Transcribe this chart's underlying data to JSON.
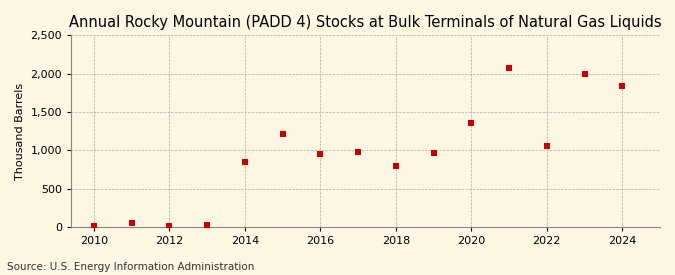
{
  "title": "Annual Rocky Mountain (PADD 4) Stocks at Bulk Terminals of Natural Gas Liquids",
  "ylabel": "Thousand Barrels",
  "source": "Source: U.S. Energy Information Administration",
  "x": [
    2010,
    2011,
    2012,
    2013,
    2014,
    2015,
    2016,
    2017,
    2018,
    2019,
    2020,
    2021,
    2022,
    2023,
    2024
  ],
  "y": [
    10,
    55,
    10,
    35,
    855,
    1215,
    950,
    980,
    800,
    965,
    1355,
    2075,
    1060,
    2000,
    1845
  ],
  "marker_color": "#cc0000",
  "marker_size": 4,
  "xlim": [
    2009.4,
    2025.0
  ],
  "ylim": [
    0,
    2500
  ],
  "yticks": [
    0,
    500,
    1000,
    1500,
    2000,
    2500
  ],
  "xticks": [
    2010,
    2012,
    2014,
    2016,
    2018,
    2020,
    2022,
    2024
  ],
  "background_color": "#fdf6e3",
  "plot_bg_color": "#fdf6e3",
  "grid_color": "#aaaaaa",
  "title_fontsize": 10.5,
  "label_fontsize": 8,
  "tick_fontsize": 8,
  "source_fontsize": 7.5
}
